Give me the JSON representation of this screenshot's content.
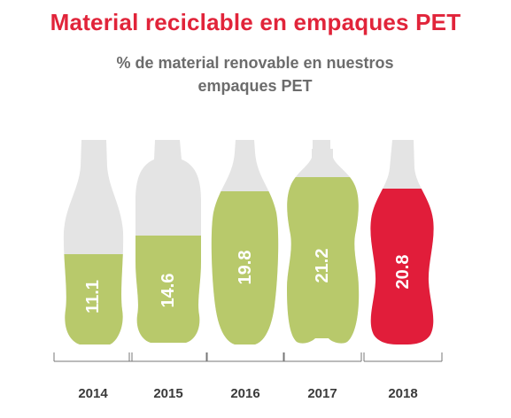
{
  "header": {
    "title": "Material reciclable en empaques PET",
    "subtitle": "% de material renovable en nuestros empaques PET"
  },
  "colors": {
    "title": "#e1243a",
    "subtitle": "#6c6c6c",
    "bottle_empty": "#e4e4e4",
    "fill_green": "#b8c96b",
    "fill_highlight": "#e11d3a",
    "axis": "#777777",
    "year_text": "#3a3a3a"
  },
  "chart_data": {
    "type": "bar",
    "title": "Material reciclable en empaques PET",
    "subtitle": "% de material renovable en nuestros empaques PET",
    "categories": [
      "2014",
      "2015",
      "2016",
      "2017",
      "2018"
    ],
    "values": [
      11.1,
      14.6,
      19.8,
      21.2,
      20.8
    ],
    "value_labels": [
      "11.1",
      "14.6",
      "19.8",
      "21.2",
      "20.8"
    ],
    "highlight_category": "2018",
    "xlabel": "",
    "ylabel": "",
    "legend": "none",
    "grid": false
  }
}
